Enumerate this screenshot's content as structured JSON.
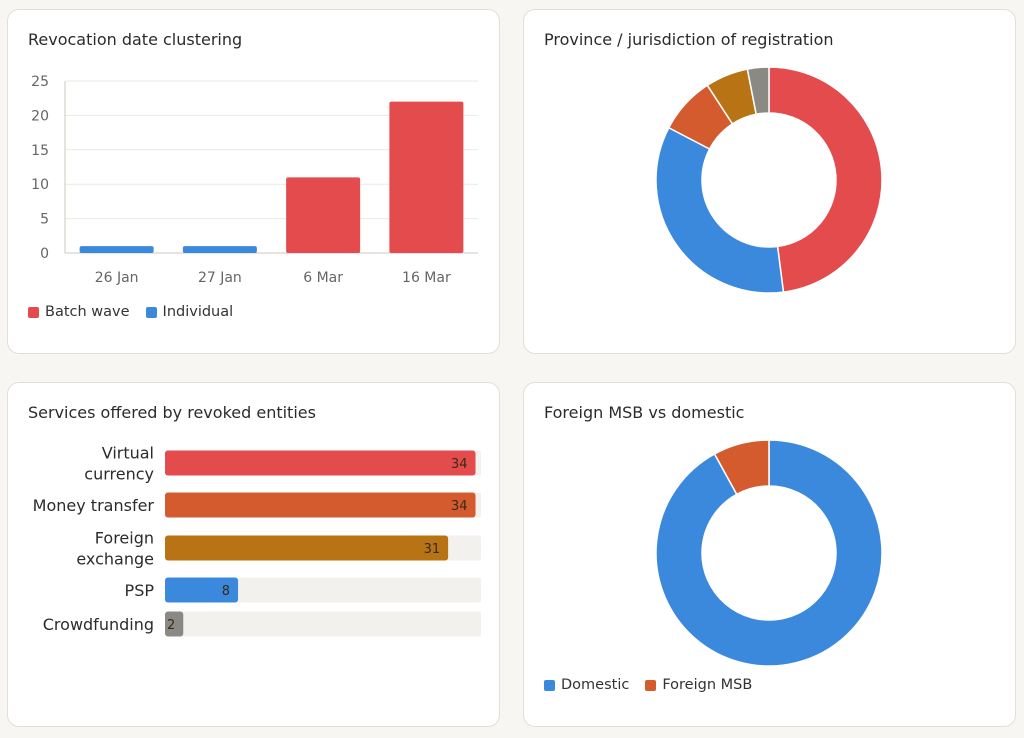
{
  "colors": {
    "red": "#e34b4d",
    "blue": "#3a89dd",
    "orange": "#d45b2e",
    "amber": "#b87414",
    "gray": "#8b8983",
    "track": "#f3f1ed"
  },
  "charts": {
    "revocation": {
      "title": "Revocation date clustering"
    },
    "province": {
      "title": "Province / jurisdiction of registration"
    },
    "services": {
      "title": "Services offered by revoked entities"
    },
    "foreign": {
      "title": "Foreign MSB vs domestic"
    }
  },
  "chart_data": [
    {
      "type": "bar",
      "title": "Revocation date clustering",
      "categories": [
        "26 Jan",
        "27 Jan",
        "6 Mar",
        "16 Mar"
      ],
      "series": [
        {
          "name": "Batch wave",
          "color": "#e34b4d",
          "values": [
            0,
            0,
            11,
            22
          ]
        },
        {
          "name": "Individual",
          "color": "#3a89dd",
          "values": [
            1,
            1,
            0,
            0
          ]
        }
      ],
      "ylim": [
        0,
        25
      ],
      "yticks": [
        0,
        5,
        10,
        15,
        20,
        25
      ],
      "grid": true,
      "legend": "bottom-left"
    },
    {
      "type": "pie",
      "title": "Province / jurisdiction of registration",
      "donut": true,
      "slices": [
        {
          "value": 47,
          "color": "#e34b4d"
        },
        {
          "value": 34,
          "color": "#3a89dd"
        },
        {
          "value": 8,
          "color": "#d45b2e"
        },
        {
          "value": 6,
          "color": "#b87414"
        },
        {
          "value": 3,
          "color": "#8b8983"
        }
      ]
    },
    {
      "type": "bar",
      "orientation": "horizontal",
      "title": "Services offered by revoked entities",
      "categories": [
        [
          "Virtual",
          "currency"
        ],
        [
          "Money transfer"
        ],
        [
          "Foreign",
          "exchange"
        ],
        [
          "PSP"
        ],
        [
          "Crowdfunding"
        ]
      ],
      "values": [
        34,
        34,
        31,
        8,
        2
      ],
      "colors": [
        "#e34b4d",
        "#d45b2e",
        "#b87414",
        "#3a89dd",
        "#8b8983"
      ],
      "xlim": [
        0,
        34.6
      ]
    },
    {
      "type": "pie",
      "title": "Foreign MSB vs domestic",
      "donut": true,
      "slices": [
        {
          "name": "Domestic",
          "value": 92,
          "color": "#3a89dd"
        },
        {
          "name": "Foreign MSB",
          "value": 8,
          "color": "#d45b2e"
        }
      ],
      "legend": "bottom-left"
    }
  ]
}
